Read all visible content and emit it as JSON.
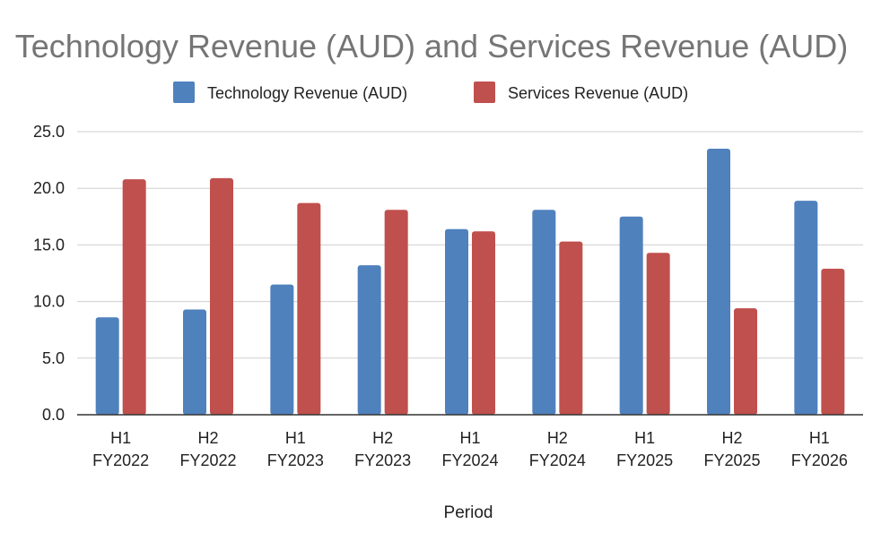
{
  "chart_data": {
    "type": "bar",
    "title": "Technology Revenue (AUD) and Services Revenue (AUD)",
    "xlabel": "Period",
    "ylabel": "",
    "ylim": [
      0,
      25
    ],
    "yticks": [
      "0.0",
      "5.0",
      "10.0",
      "15.0",
      "20.0",
      "25.0"
    ],
    "ytick_values": [
      0,
      5,
      10,
      15,
      20,
      25
    ],
    "grid": true,
    "legend_position": "top-center",
    "categories": [
      [
        "H1",
        "FY2022"
      ],
      [
        "H2",
        "FY2022"
      ],
      [
        "H1",
        "FY2023"
      ],
      [
        "H2",
        "FY2023"
      ],
      [
        "H1",
        "FY2024"
      ],
      [
        "H2",
        "FY2024"
      ],
      [
        "H1",
        "FY2025"
      ],
      [
        "H2",
        "FY2025"
      ],
      [
        "H1",
        "FY2026"
      ]
    ],
    "series": [
      {
        "name": "Technology Revenue (AUD)",
        "color": "#4f81bd",
        "values": [
          8.6,
          9.3,
          11.5,
          13.2,
          16.4,
          18.1,
          17.5,
          23.5,
          18.9
        ]
      },
      {
        "name": "Services Revenue (AUD)",
        "color": "#c0504d",
        "values": [
          20.8,
          20.9,
          18.7,
          18.1,
          16.2,
          15.3,
          14.3,
          9.4,
          12.9
        ]
      }
    ]
  }
}
